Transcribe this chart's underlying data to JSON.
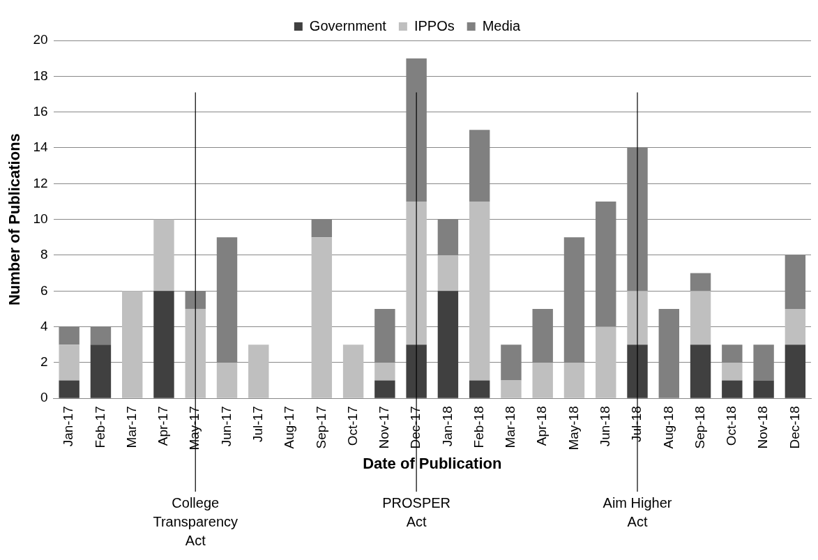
{
  "chart_data": {
    "type": "bar",
    "stacked": true,
    "xlabel": "Date of Publication",
    "ylabel": "Number of Publications",
    "categories": [
      "Jan-17",
      "Feb-17",
      "Mar-17",
      "Apr-17",
      "May-17",
      "Jun-17",
      "Jul-17",
      "Aug-17",
      "Sep-17",
      "Oct-17",
      "Nov-17",
      "Dec-17",
      "Jan-18",
      "Feb-18",
      "Mar-18",
      "Apr-18",
      "May-18",
      "Jun-18",
      "Jul-18",
      "Aug-18",
      "Sep-18",
      "Oct-18",
      "Nov-18",
      "Dec-18"
    ],
    "series": [
      {
        "name": "Government",
        "color": "#404040",
        "values": [
          1,
          3,
          0,
          6,
          0,
          0,
          0,
          0,
          0,
          0,
          1,
          3,
          6,
          1,
          0,
          0,
          0,
          0,
          3,
          0,
          3,
          1,
          1,
          3
        ]
      },
      {
        "name": "IPPOs",
        "color": "#bfbfbf",
        "values": [
          2,
          0,
          6,
          4,
          5,
          2,
          3,
          0,
          9,
          3,
          1,
          8,
          2,
          10,
          1,
          2,
          2,
          4,
          3,
          0,
          3,
          1,
          0,
          2
        ]
      },
      {
        "name": "Media",
        "color": "#808080",
        "values": [
          1,
          1,
          0,
          0,
          1,
          7,
          0,
          0,
          1,
          0,
          3,
          8,
          2,
          4,
          2,
          3,
          7,
          7,
          8,
          5,
          1,
          1,
          2,
          3
        ]
      }
    ],
    "ylim": [
      0,
      20
    ],
    "yticks": [
      0,
      2,
      4,
      6,
      8,
      10,
      12,
      14,
      16,
      18,
      20
    ],
    "grid": "y",
    "legend": "top",
    "ref_lines": [
      {
        "axis": "x",
        "value": "May-17",
        "label": "College Transparency Act",
        "color": "#000000"
      },
      {
        "axis": "x",
        "value": "Dec-17",
        "label": "PROSPER Act",
        "color": "#000000"
      },
      {
        "axis": "x",
        "value": "Jul-18",
        "label": "Aim Higher Act",
        "color": "#000000"
      }
    ]
  }
}
